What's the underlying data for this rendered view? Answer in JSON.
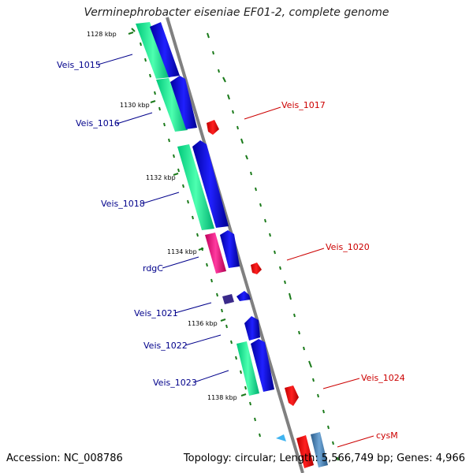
{
  "title": "Verminephrobacter eiseniae EF01-2, complete genome",
  "accession_line": "Accession: NC_008786",
  "summary_line": "Topology: circular; Length: 5,566,749 bp; Genes: 4,966",
  "ticks": [
    "1128 kbp",
    "1130 kbp",
    "1132 kbp",
    "1134 kbp",
    "1136 kbp",
    "1138 kbp"
  ],
  "labels": {
    "veis_1015": "Veis_1015",
    "veis_1016": "Veis_1016",
    "veis_1017": "Veis_1017",
    "veis_1018": "Veis_1018",
    "veis_1020": "Veis_1020",
    "rdgc": "rdgC",
    "veis_1021": "Veis_1021",
    "veis_1022": "Veis_1022",
    "veis_1023": "Veis_1023",
    "veis_1024": "Veis_1024",
    "cysm": "cysM"
  },
  "colors": {
    "reverse_label": "#00008b",
    "forward_label": "#cc0000",
    "backbone": "#808080",
    "gc_tick": "#1a7a1a"
  }
}
